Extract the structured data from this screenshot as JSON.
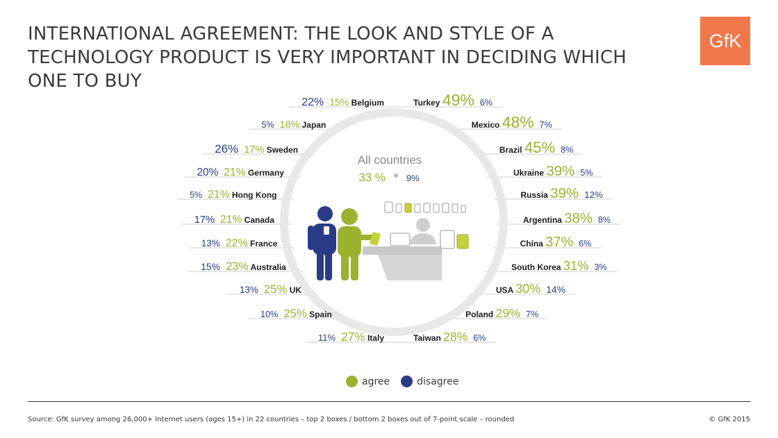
{
  "title": "INTERNATIONAL AGREEMENT: THE LOOK AND STYLE OF A TECHNOLOGY PRODUCT IS VERY IMPORTANT IN DECIDING WHICH ONE TO BUY",
  "logo_text": "GfK",
  "colors": {
    "agree": "#9bb22f",
    "disagree": "#2b3a86",
    "line": "#e6e6e6",
    "label": "#1a1a1a",
    "logo": "#f2784b"
  },
  "legend": {
    "agree": "agree",
    "disagree": "disagree"
  },
  "source": "Source: GfK survey among 26,000+ Internet users (ages 15+) in 22 countries – top 2 boxes / bottom 2 boxes out of 7-point scale – rounded",
  "copyright": "© GfK 2015",
  "chart_data": {
    "type": "table",
    "all_countries": {
      "label": "All countries",
      "agree": 33,
      "disagree": 9
    },
    "left": [
      {
        "country": "Belgium",
        "agree": 15,
        "disagree": 22
      },
      {
        "country": "Japan",
        "agree": 16,
        "disagree": 5
      },
      {
        "country": "Sweden",
        "agree": 17,
        "disagree": 26
      },
      {
        "country": "Germany",
        "agree": 21,
        "disagree": 20
      },
      {
        "country": "Hong Kong",
        "agree": 21,
        "disagree": 5
      },
      {
        "country": "Canada",
        "agree": 21,
        "disagree": 17
      },
      {
        "country": "France",
        "agree": 22,
        "disagree": 13
      },
      {
        "country": "Australia",
        "agree": 23,
        "disagree": 15
      },
      {
        "country": "UK",
        "agree": 25,
        "disagree": 13
      },
      {
        "country": "Spain",
        "agree": 25,
        "disagree": 10
      },
      {
        "country": "Italy",
        "agree": 27,
        "disagree": 11
      }
    ],
    "right": [
      {
        "country": "Turkey",
        "agree": 49,
        "disagree": 6
      },
      {
        "country": "Mexico",
        "agree": 48,
        "disagree": 7
      },
      {
        "country": "Brazil",
        "agree": 45,
        "disagree": 8
      },
      {
        "country": "Ukraine",
        "agree": 39,
        "disagree": 5
      },
      {
        "country": "Russia",
        "agree": 39,
        "disagree": 12
      },
      {
        "country": "Argentina",
        "agree": 38,
        "disagree": 8
      },
      {
        "country": "China",
        "agree": 37,
        "disagree": 6
      },
      {
        "country": "South Korea",
        "agree": 31,
        "disagree": 3
      },
      {
        "country": "USA",
        "agree": 30,
        "disagree": 14
      },
      {
        "country": "Poland",
        "agree": 29,
        "disagree": 7
      },
      {
        "country": "Taiwan",
        "agree": 28,
        "disagree": 6
      }
    ]
  }
}
